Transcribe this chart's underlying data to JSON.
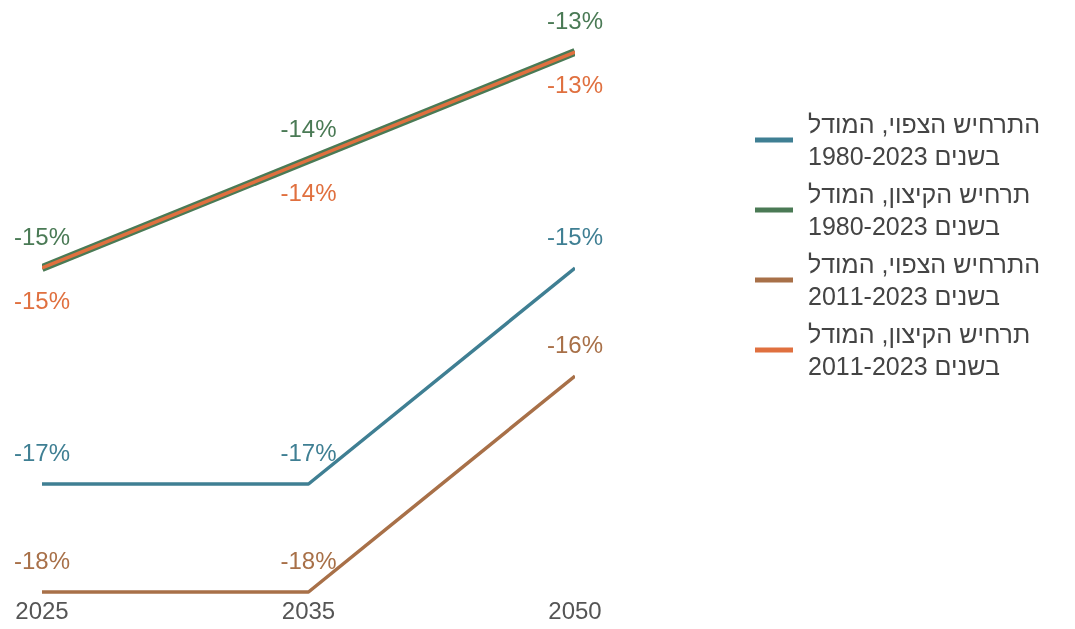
{
  "chart_data": {
    "type": "line",
    "categories": [
      "2025",
      "2035",
      "2050"
    ],
    "series": [
      {
        "name": "התרחיש הצפוי, המודל בשנים 1980-2023",
        "color": "#3f7f93",
        "values": [
          -17,
          -17,
          -15
        ],
        "value_labels": [
          "-17%",
          "-17%",
          "-15%"
        ]
      },
      {
        "name": "תרחיש הקיצון, המודל בשנים 1980-2023",
        "color": "#4a7a55",
        "values": [
          -15,
          -14,
          -13
        ],
        "value_labels": [
          "-15%",
          "-14%",
          "-13%"
        ]
      },
      {
        "name": "התרחיש הצפוי, המודל בשנים 2011-2023",
        "color": "#a87048",
        "values": [
          -18,
          -18,
          -16
        ],
        "value_labels": [
          "-18%",
          "-18%",
          "-16%"
        ]
      },
      {
        "name": "תרחיש הקיצון, המודל בשנים 2011-2023",
        "color": "#e0703f",
        "values": [
          -15,
          -14,
          -13
        ],
        "value_labels": [
          "-15%",
          "-14%",
          "-13%"
        ]
      }
    ],
    "legend": "right",
    "grid": false,
    "marker": "none",
    "line_style": "solid"
  }
}
